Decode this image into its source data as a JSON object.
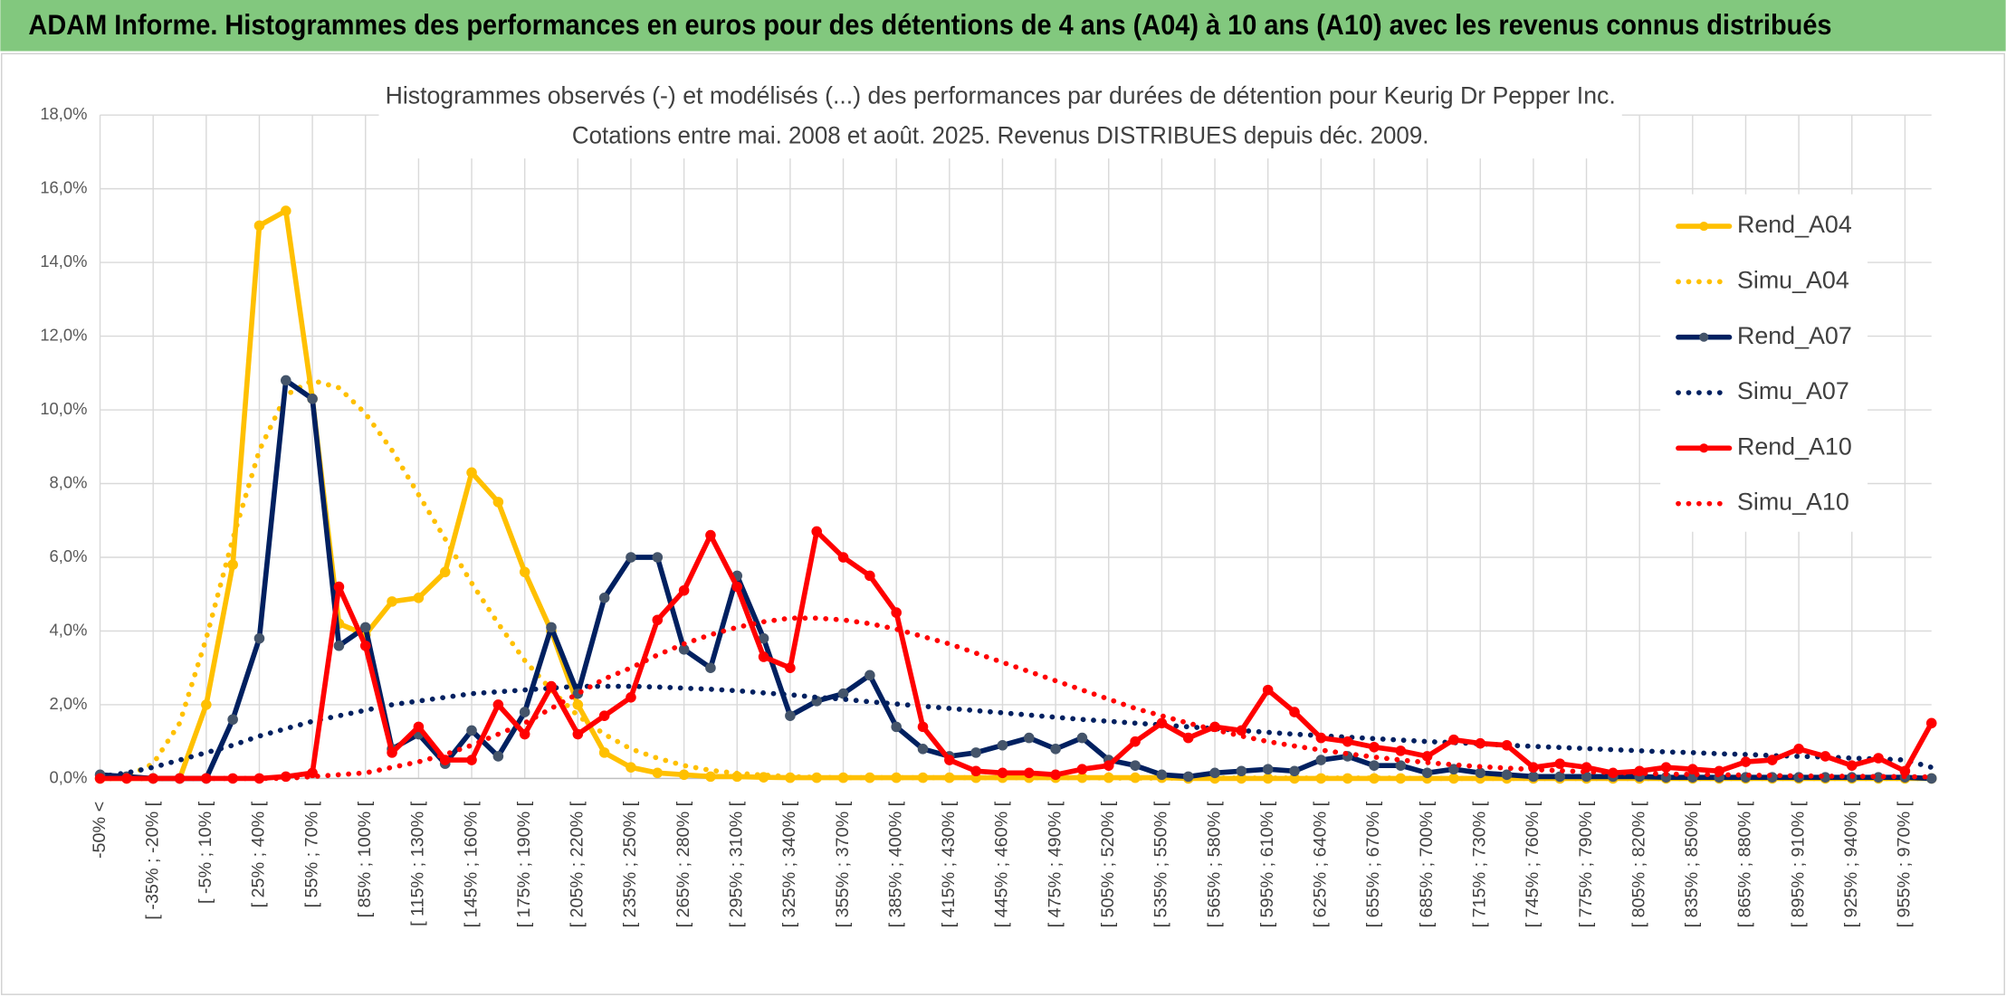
{
  "header": {
    "title": "ADAM Informe. Histogrammes des performances en euros pour des détentions de 4 ans (A04) à 10 ans (A10) avec les revenus connus distribués"
  },
  "chart_data": {
    "type": "line",
    "title": "Histogrammes observés (-) et modélisés (...) des performances par durées de détention pour Keurig Dr Pepper Inc.",
    "subtitle": "Cotations entre mai. 2008 et août. 2025. Revenus DISTRIBUES depuis déc. 2009.",
    "categories": [
      "-50% <",
      null,
      "[ -35% ; -20% [",
      null,
      "[ -5% ; 10% [",
      null,
      "[ 25% ; 40% [",
      null,
      "[ 55% ; 70% [",
      null,
      "[ 85% ; 100% [",
      null,
      "[ 115% ; 130% [",
      null,
      "[ 145% ; 160% [",
      null,
      "[ 175% ; 190% [",
      null,
      "[ 205% ; 220% [",
      null,
      "[ 235% ; 250% [",
      null,
      "[ 265% ; 280% [",
      null,
      "[ 295% ; 310% [",
      null,
      "[ 325% ; 340% [",
      null,
      "[ 355% ; 370% [",
      null,
      "[ 385% ; 400% [",
      null,
      "[ 415% ; 430% [",
      null,
      "[ 445% ; 460% [",
      null,
      "[ 475% ; 490% [",
      null,
      "[ 505% ; 520% [",
      null,
      "[ 535% ; 550% [",
      null,
      "[ 565% ; 580% [",
      null,
      "[ 595% ; 610% [",
      null,
      "[ 625% ; 640% [",
      null,
      "[ 655% ; 670% [",
      null,
      "[ 685% ; 700% [",
      null,
      "[ 715% ; 730% [",
      null,
      "[ 745% ; 760% [",
      null,
      "[ 775% ; 790% [",
      null,
      "[ 805% ; 820% [",
      null,
      "[ 835% ; 850% [",
      null,
      "[ 865% ; 880% [",
      null,
      "[ 895% ; 910% [",
      null,
      "[ 925% ; 940% [",
      null,
      "[ 955% ; 970% [",
      null
    ],
    "series": [
      {
        "name": "Rend_A04",
        "color": "#FFC000",
        "line_style": "solid",
        "markers": true,
        "marker_color": "#FFC000",
        "values": [
          0,
          0,
          0,
          0,
          2.0,
          5.8,
          15.0,
          15.4,
          10.3,
          4.2,
          3.9,
          4.8,
          4.9,
          5.6,
          8.3,
          7.5,
          5.6,
          4.0,
          2.0,
          0.7,
          0.3,
          0.15,
          0.1,
          0.05,
          0.05,
          0.03,
          0.02,
          0.02,
          0.02,
          0.02,
          0.02,
          0.02,
          0.02,
          0.02,
          0.02,
          0.02,
          0.02,
          0.02,
          0.02,
          0.02,
          0.02,
          0,
          0,
          0,
          0,
          0,
          0,
          0,
          0,
          0,
          0,
          0,
          0,
          0,
          0,
          0,
          0,
          0,
          0,
          0,
          0,
          0,
          0,
          0,
          0,
          0,
          0,
          0,
          0,
          0
        ]
      },
      {
        "name": "Simu_A04",
        "color": "#FFC000",
        "line_style": "dotted",
        "markers": false,
        "values": [
          0,
          0.05,
          0.4,
          1.5,
          3.8,
          6.5,
          8.9,
          10.4,
          10.8,
          10.6,
          9.9,
          8.9,
          7.7,
          6.5,
          5.3,
          4.2,
          3.2,
          2.4,
          1.7,
          1.2,
          0.8,
          0.55,
          0.35,
          0.22,
          0.14,
          0.09,
          0.05,
          0.03,
          0.02,
          0.02,
          0.02,
          0.02,
          0.02,
          0.02,
          0.02,
          0.02,
          0.02,
          0.02,
          0.01,
          0.01,
          0.01,
          0.01,
          0.01,
          0.01,
          0.01,
          0.01,
          0.01,
          0.01,
          0.01,
          0.01,
          0,
          0,
          0,
          0,
          0,
          0,
          0,
          0,
          0,
          0,
          0,
          0,
          0,
          0,
          0,
          0,
          0,
          0,
          0,
          0
        ]
      },
      {
        "name": "Rend_A07",
        "color": "#002060",
        "line_style": "solid",
        "markers": true,
        "marker_color": "#44546A",
        "values": [
          0.1,
          0.05,
          0,
          0,
          0,
          1.6,
          3.8,
          10.8,
          10.3,
          3.6,
          4.1,
          0.8,
          1.2,
          0.4,
          1.3,
          0.6,
          1.8,
          4.1,
          2.3,
          4.9,
          6.0,
          6.0,
          3.5,
          3.0,
          5.5,
          3.8,
          1.7,
          2.1,
          2.3,
          2.8,
          1.4,
          0.8,
          0.6,
          0.7,
          0.9,
          1.1,
          0.8,
          1.1,
          0.5,
          0.35,
          0.1,
          0.05,
          0.15,
          0.2,
          0.25,
          0.2,
          0.5,
          0.6,
          0.35,
          0.35,
          0.15,
          0.25,
          0.15,
          0.1,
          0.05,
          0.05,
          0.05,
          0.05,
          0.05,
          0.03,
          0.03,
          0.03,
          0.03,
          0.03,
          0.03,
          0.03,
          0.03,
          0.03,
          0.03,
          0
        ]
      },
      {
        "name": "Simu_A07",
        "color": "#002060",
        "line_style": "dotted",
        "markers": false,
        "values": [
          0.05,
          0.15,
          0.3,
          0.5,
          0.7,
          0.9,
          1.15,
          1.35,
          1.55,
          1.7,
          1.85,
          2.0,
          2.1,
          2.2,
          2.3,
          2.35,
          2.4,
          2.45,
          2.5,
          2.5,
          2.5,
          2.48,
          2.45,
          2.42,
          2.38,
          2.32,
          2.27,
          2.2,
          2.15,
          2.08,
          2.02,
          1.96,
          1.9,
          1.84,
          1.78,
          1.72,
          1.66,
          1.6,
          1.55,
          1.5,
          1.45,
          1.4,
          1.35,
          1.3,
          1.25,
          1.2,
          1.16,
          1.12,
          1.08,
          1.04,
          1.0,
          0.97,
          0.94,
          0.9,
          0.87,
          0.84,
          0.81,
          0.78,
          0.75,
          0.72,
          0.7,
          0.67,
          0.65,
          0.62,
          0.6,
          0.58,
          0.55,
          0.53,
          0.5,
          0.3
        ]
      },
      {
        "name": "Rend_A10",
        "color": "#FF0000",
        "line_style": "solid",
        "markers": true,
        "marker_color": "#FF0000",
        "values": [
          0,
          0,
          0,
          0,
          0,
          0,
          0,
          0.05,
          0.15,
          5.2,
          3.6,
          0.7,
          1.4,
          0.5,
          0.5,
          2.0,
          1.2,
          2.5,
          1.2,
          1.7,
          2.2,
          4.3,
          5.1,
          6.6,
          5.2,
          3.3,
          3.0,
          6.7,
          6.0,
          5.5,
          4.5,
          1.4,
          0.5,
          0.2,
          0.15,
          0.15,
          0.1,
          0.25,
          0.35,
          1.0,
          1.5,
          1.1,
          1.4,
          1.3,
          2.4,
          1.8,
          1.1,
          1.0,
          0.85,
          0.75,
          0.6,
          1.05,
          0.95,
          0.9,
          0.3,
          0.4,
          0.3,
          0.15,
          0.2,
          0.3,
          0.25,
          0.2,
          0.45,
          0.5,
          0.8,
          0.6,
          0.35,
          0.55,
          0.2,
          1.5
        ]
      },
      {
        "name": "Simu_A10",
        "color": "#FF0000",
        "line_style": "dotted",
        "markers": false,
        "values": [
          0,
          0,
          0,
          0,
          0,
          0,
          0,
          0,
          0.05,
          0.1,
          0.15,
          0.3,
          0.45,
          0.65,
          0.9,
          1.2,
          1.5,
          1.9,
          2.3,
          2.7,
          3.0,
          3.35,
          3.65,
          3.9,
          4.1,
          4.25,
          4.35,
          4.35,
          4.3,
          4.2,
          4.05,
          3.85,
          3.65,
          3.4,
          3.15,
          2.9,
          2.65,
          2.4,
          2.15,
          1.9,
          1.7,
          1.5,
          1.32,
          1.15,
          1.0,
          0.88,
          0.77,
          0.67,
          0.58,
          0.5,
          0.43,
          0.37,
          0.32,
          0.28,
          0.24,
          0.21,
          0.18,
          0.16,
          0.14,
          0.12,
          0.11,
          0.1,
          0.09,
          0.08,
          0.07,
          0.06,
          0.06,
          0.05,
          0.05,
          0.04
        ]
      }
    ],
    "ylim": [
      0,
      18
    ],
    "yticks": [
      {
        "value": 0,
        "label": "0,0%"
      },
      {
        "value": 2,
        "label": "2,0%"
      },
      {
        "value": 4,
        "label": "4,0%"
      },
      {
        "value": 6,
        "label": "6,0%"
      },
      {
        "value": 8,
        "label": "8,0%"
      },
      {
        "value": 10,
        "label": "10,0%"
      },
      {
        "value": 12,
        "label": "12,0%"
      },
      {
        "value": 14,
        "label": "14,0%"
      },
      {
        "value": 16,
        "label": "16,0%"
      },
      {
        "value": 18,
        "label": "18,0%"
      }
    ],
    "grid": true,
    "legend": "right"
  }
}
